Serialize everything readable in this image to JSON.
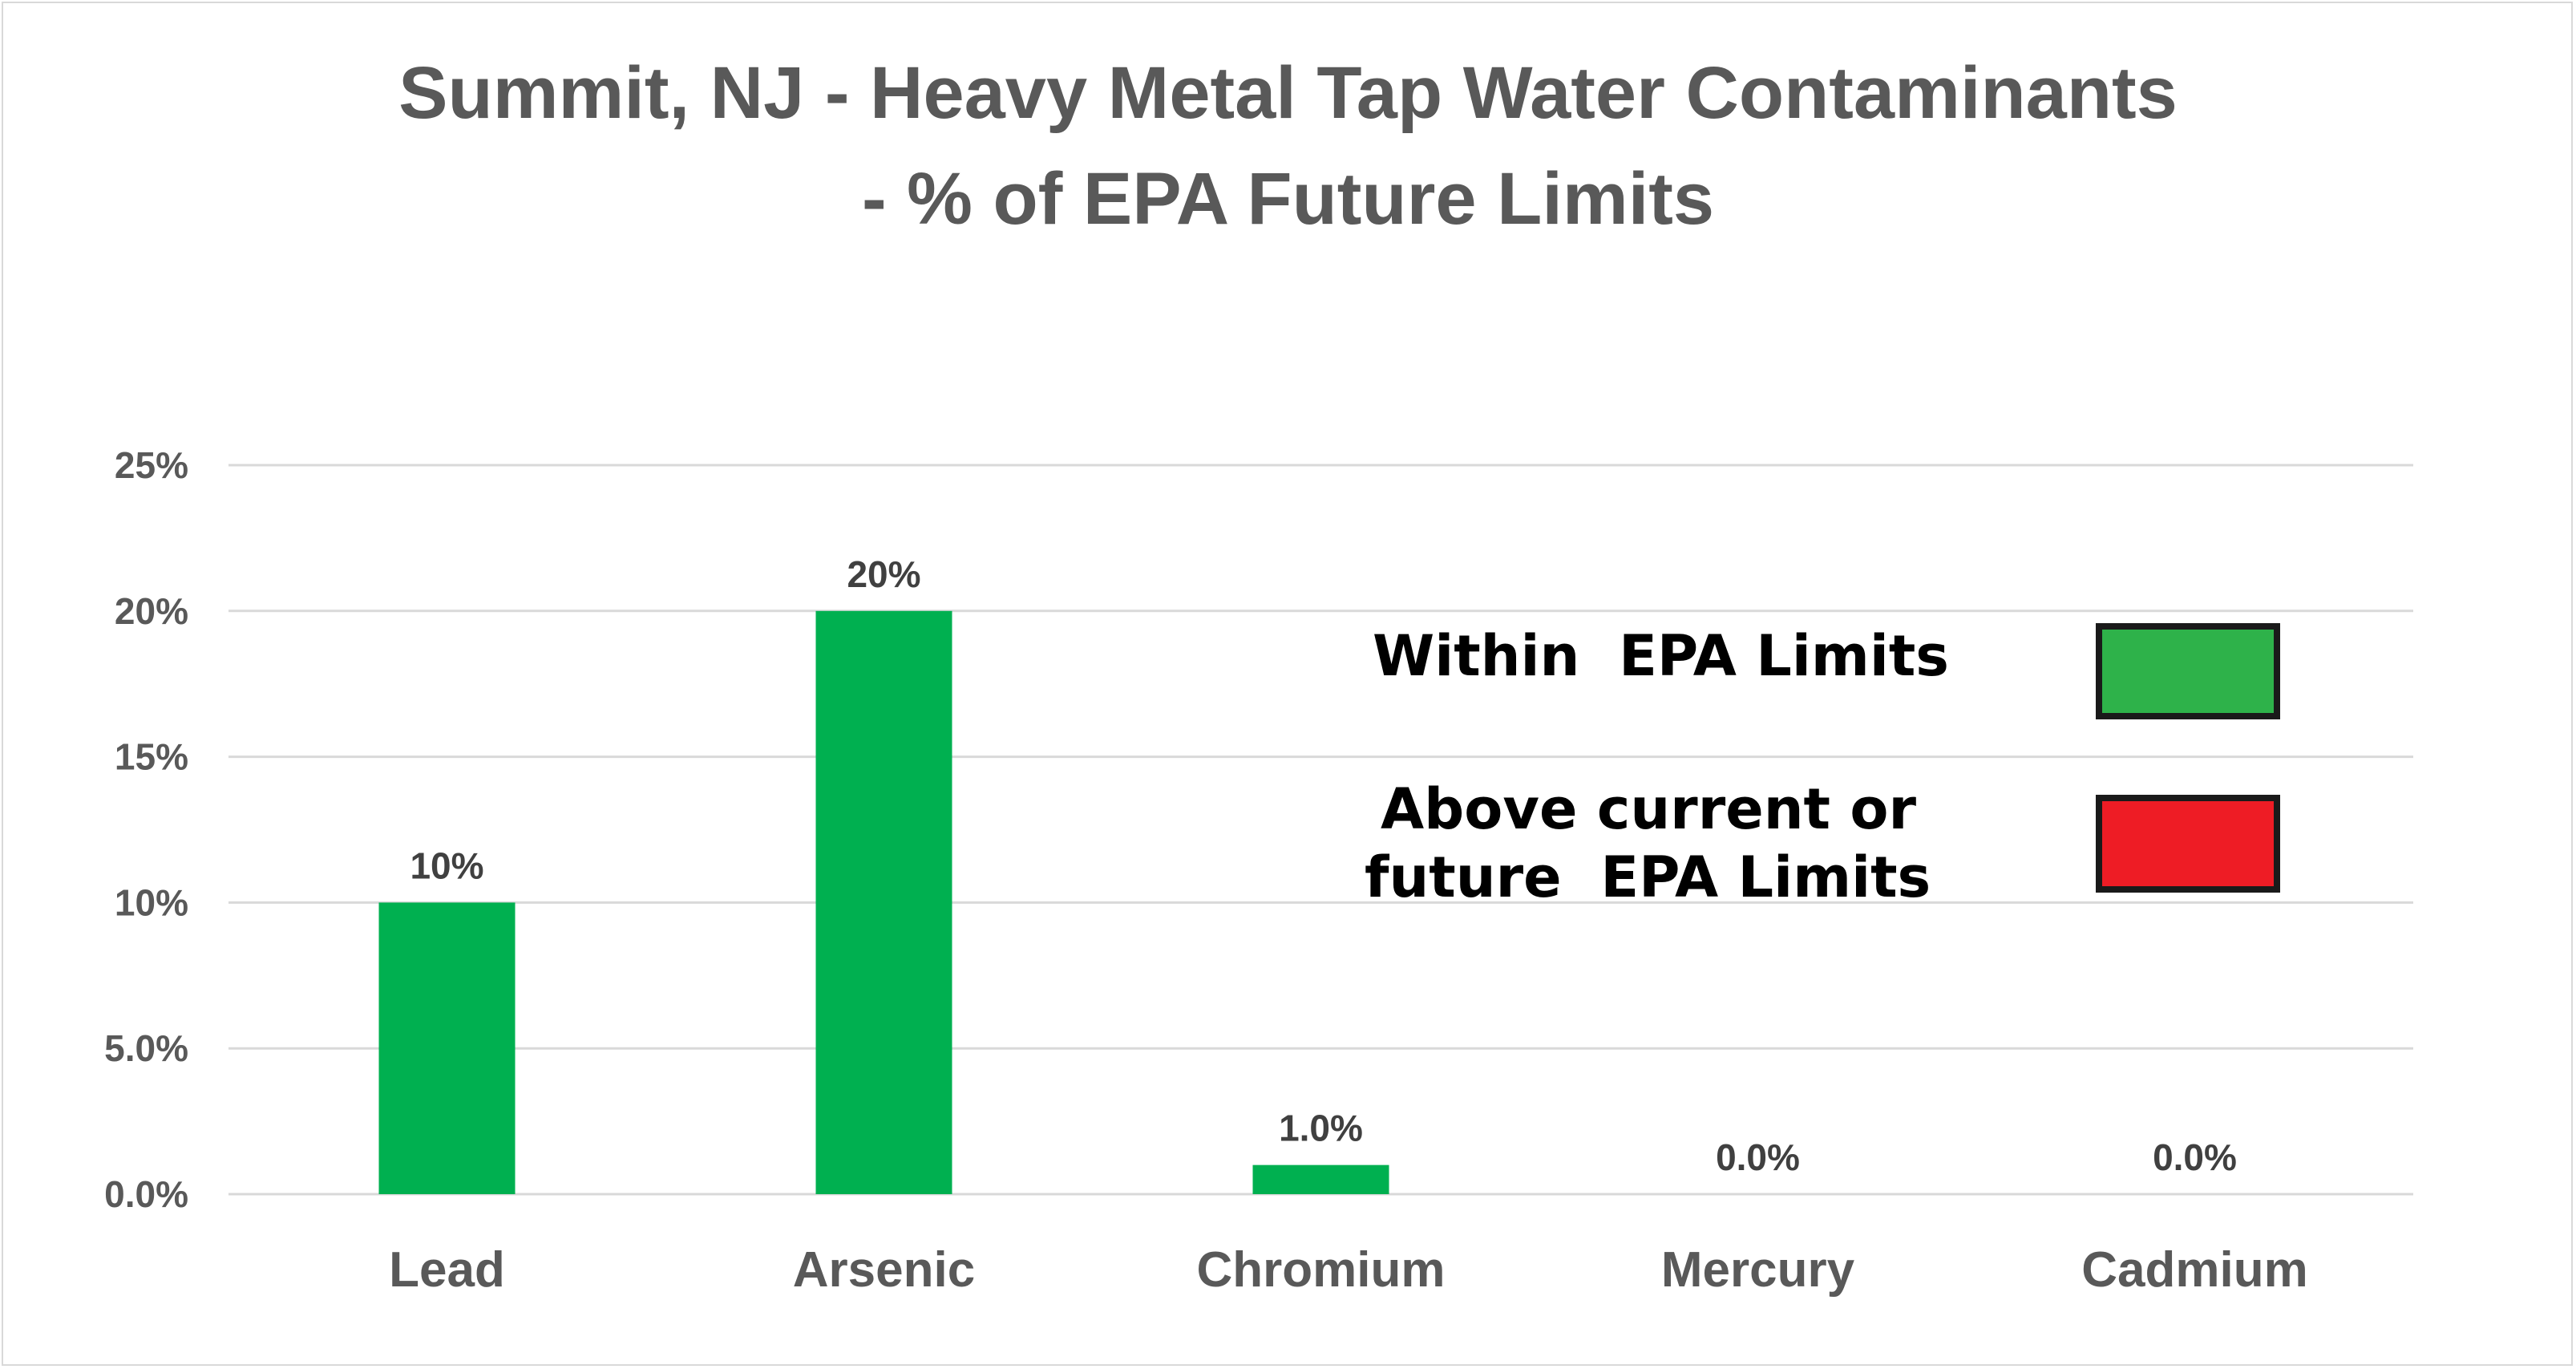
{
  "chart_data": {
    "type": "bar",
    "title": "Summit, NJ - Heavy Metal Tap Water Contaminants - % of EPA Future Limits",
    "title_lines": [
      "Summit, NJ - Heavy Metal Tap Water Contaminants",
      "- % of EPA Future Limits"
    ],
    "categories": [
      "Lead",
      "Arsenic",
      "Chromium",
      "Mercury",
      "Cadmium"
    ],
    "values": [
      10,
      20,
      1,
      0,
      0
    ],
    "data_labels": [
      "10%",
      "20%",
      "1.0%",
      "0.0%",
      "0.0%"
    ],
    "ylim": [
      0,
      25
    ],
    "yticks": [
      0,
      5,
      10,
      15,
      20,
      25
    ],
    "ytick_labels": [
      "0.0%",
      "5.0%",
      "10%",
      "15%",
      "20%",
      "25%"
    ],
    "xlabel": "",
    "ylabel": "",
    "grid": true,
    "bar_color": "#00b050",
    "legend": {
      "placement": "right",
      "items": [
        {
          "lines": [
            "Within  EPA Limits"
          ],
          "color": "#2eb24a"
        },
        {
          "lines": [
            "Above current or",
            "future  EPA Limits"
          ],
          "color": "#ee1c25"
        }
      ]
    }
  }
}
